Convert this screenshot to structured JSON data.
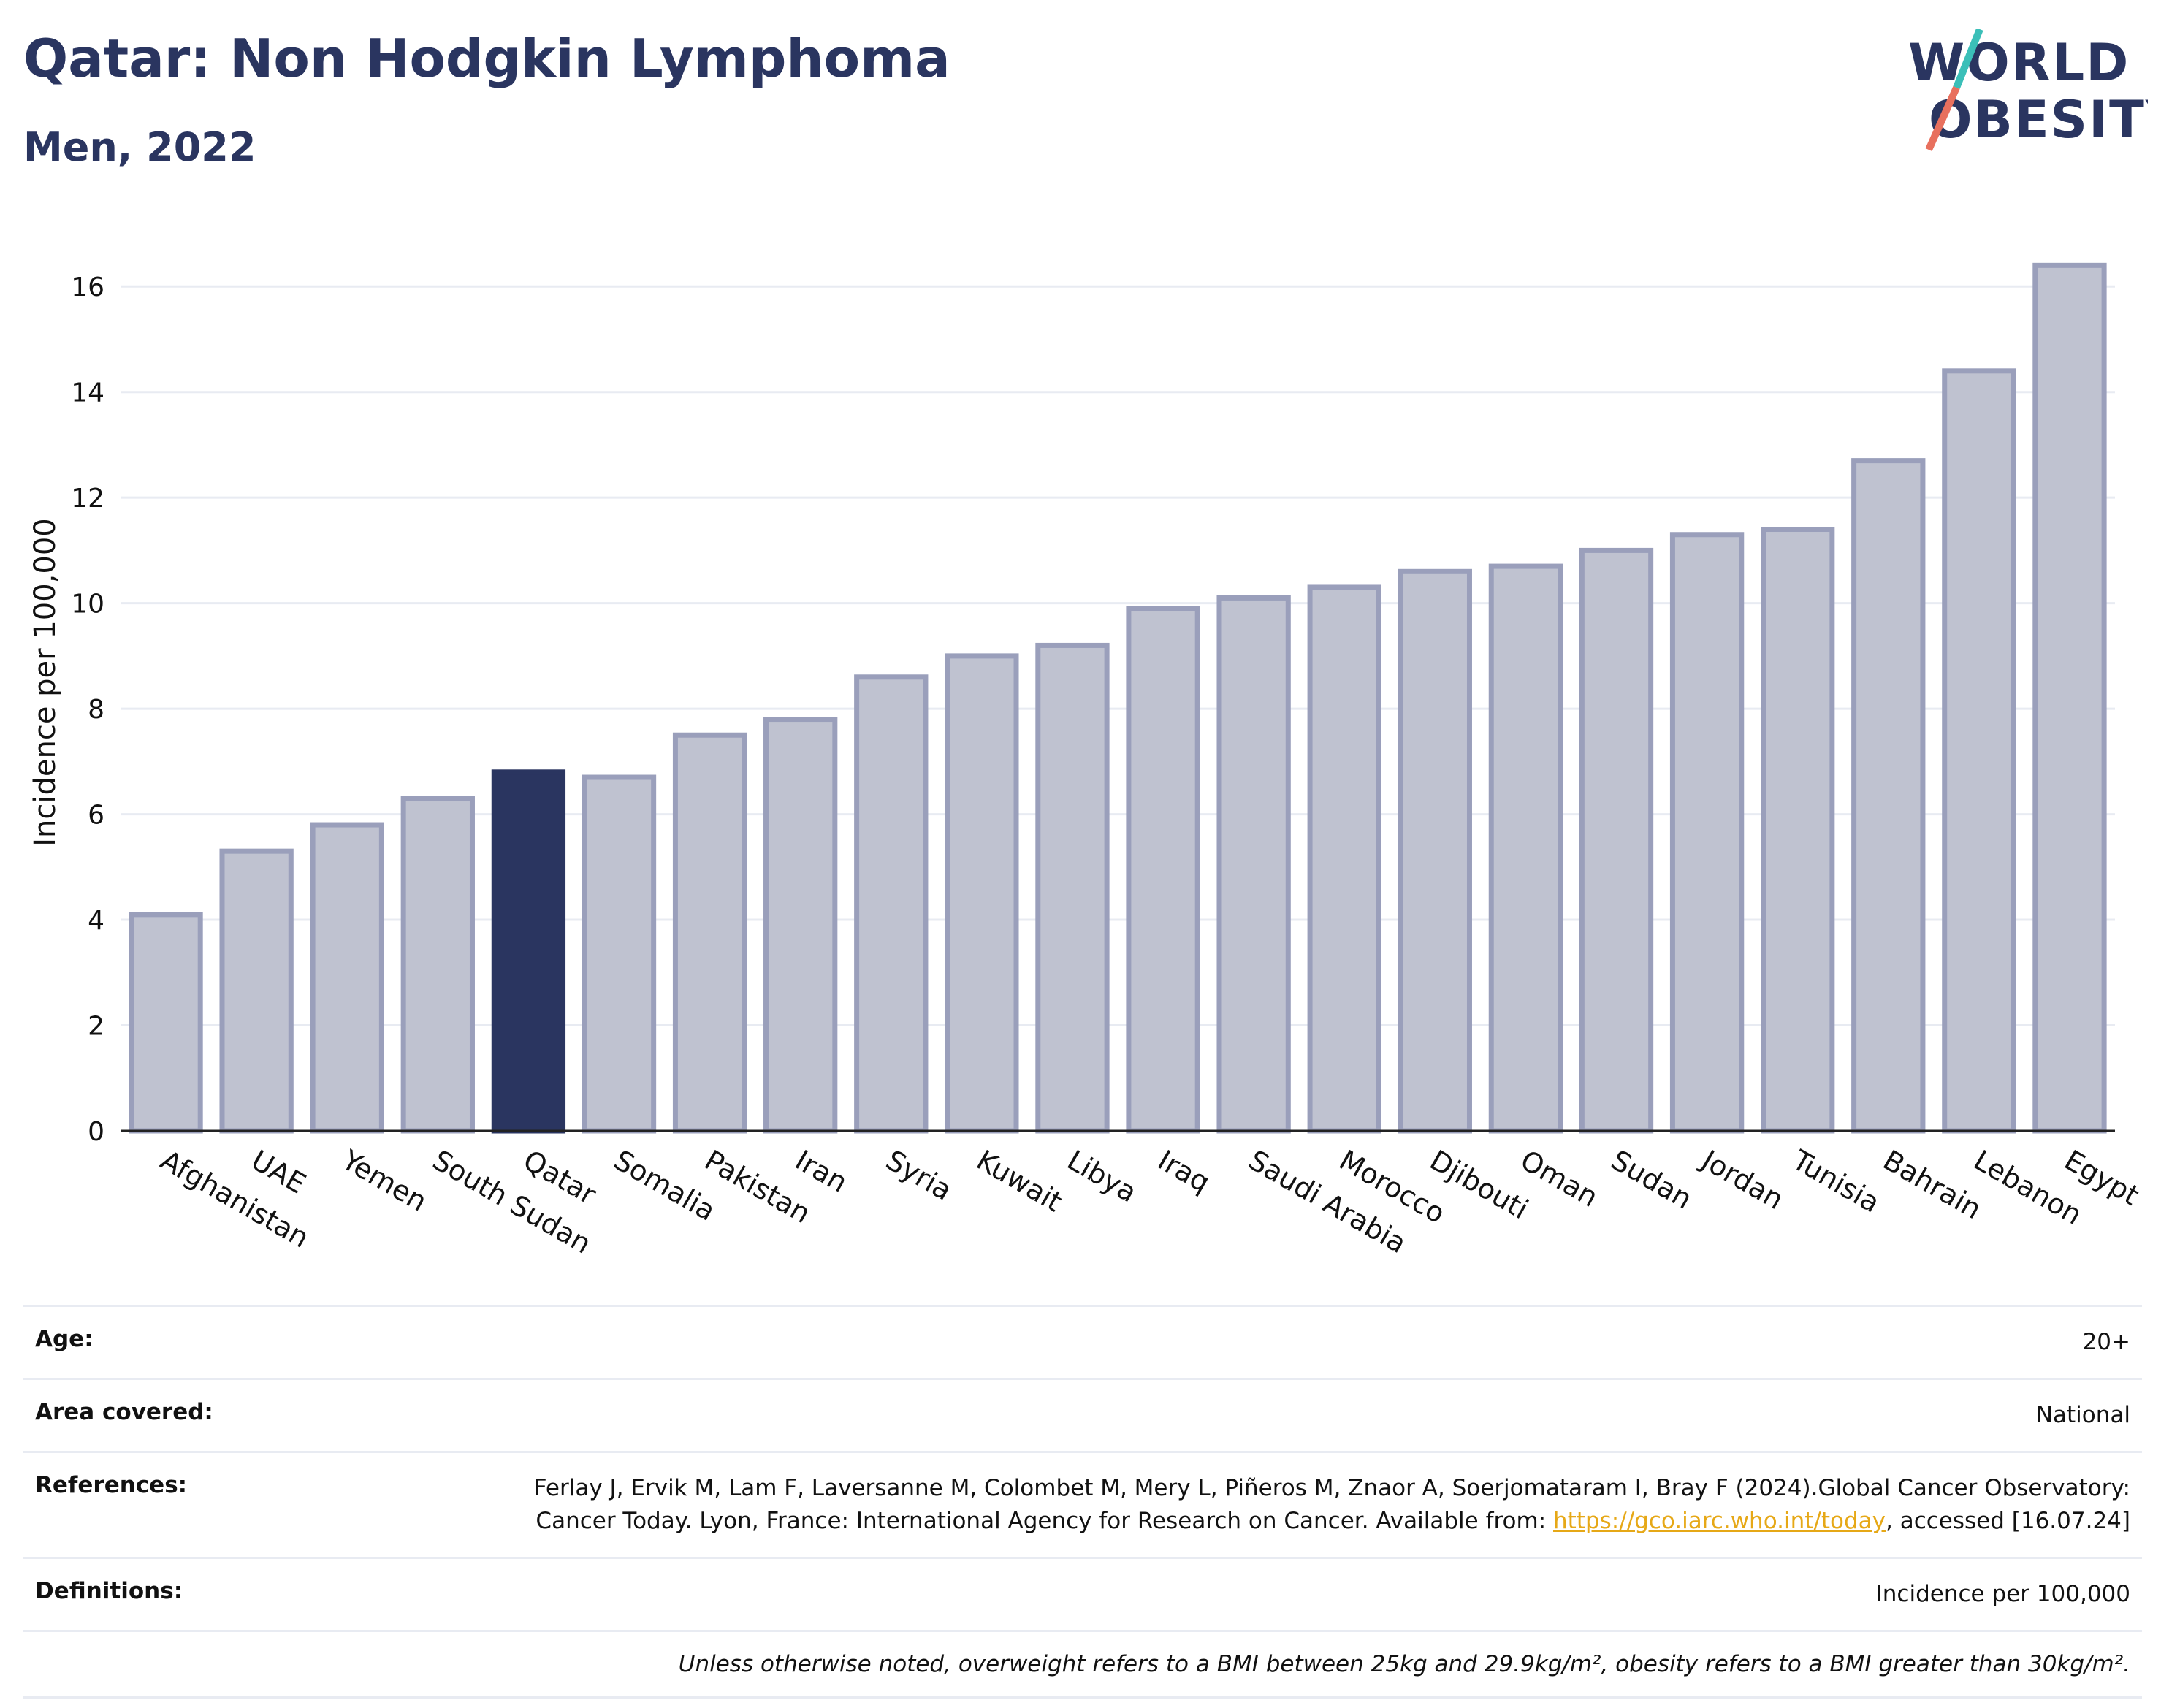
{
  "header": {
    "title": "Qatar: Non Hodgkin Lymphoma",
    "subtitle": "Men, 2022"
  },
  "logo": {
    "line1": "WORLD",
    "line2": "OBESITY"
  },
  "colors": {
    "highlight": "#2a3560",
    "bar_fill": "#bfc2d0",
    "bar_stroke": "#9a9fbb",
    "grid": "#e8ebf2",
    "logo_teal": "#3bbfb8",
    "logo_coral": "#e8705e",
    "link": "#e6a817"
  },
  "chart_data": {
    "type": "bar",
    "title": "Qatar: Non Hodgkin Lymphoma",
    "subtitle": "Men, 2022",
    "xlabel": "",
    "ylabel": "Incidence per 100,000",
    "ylim": [
      0,
      17
    ],
    "yticks": [
      0,
      2,
      4,
      6,
      8,
      10,
      12,
      14,
      16
    ],
    "grid": true,
    "highlight": "Qatar",
    "categories": [
      "Afghanistan",
      "UAE",
      "Yemen",
      "South Sudan",
      "Qatar",
      "Somalia",
      "Pakistan",
      "Iran",
      "Syria",
      "Kuwait",
      "Libya",
      "Iraq",
      "Saudi Arabia",
      "Morocco",
      "Djibouti",
      "Oman",
      "Sudan",
      "Jordan",
      "Tunisia",
      "Bahrain",
      "Lebanon",
      "Egypt"
    ],
    "values": [
      4.1,
      5.3,
      5.8,
      6.3,
      6.8,
      6.7,
      7.5,
      7.8,
      8.6,
      9.0,
      9.2,
      9.9,
      10.1,
      10.3,
      10.6,
      10.7,
      11.0,
      11.3,
      11.4,
      12.7,
      14.4,
      16.4
    ]
  },
  "meta": {
    "age_label": "Age:",
    "age_value": "20+",
    "area_label": "Area covered:",
    "area_value": "National",
    "references_label": "References:",
    "references_text": "Ferlay J, Ervik M, Lam F, Laversanne M, Colombet M, Mery L, Piñeros M, Znaor A, Soerjomataram I, Bray F (2024).Global Cancer Observatory: Cancer Today. Lyon, France: International Agency for Research on Cancer. Available from: ",
    "references_link": "https://gco.iarc.who.int/today",
    "references_suffix": ", accessed [16.07.24]",
    "definitions_label": "Definitions:",
    "definitions_value": "Incidence per 100,000",
    "note": "Unless otherwise noted, overweight refers to a BMI between 25kg and 29.9kg/m², obesity refers to a BMI greater than 30kg/m²."
  }
}
